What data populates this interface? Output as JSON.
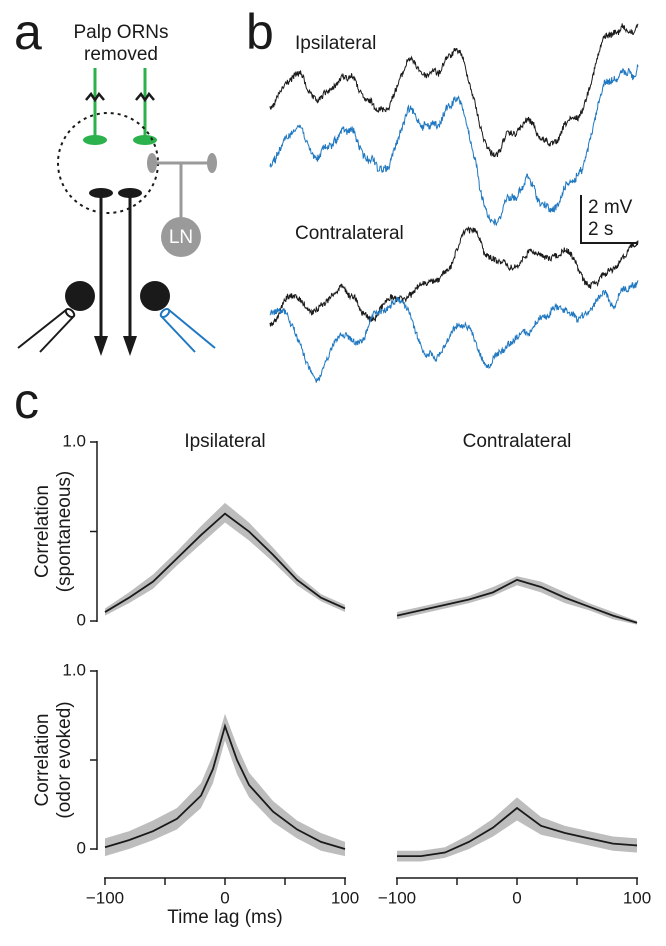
{
  "panels": {
    "a": {
      "letter": "a",
      "label": [
        "Palp ORNs",
        "removed"
      ],
      "ln": "LN"
    },
    "b": {
      "letter": "b",
      "ipsi": "Ipsilateral",
      "contra": "Contralateral",
      "scale_v": "2 mV",
      "scale_t": "2 s"
    },
    "c": {
      "letter": "c",
      "xlabel": "Time lag (ms)"
    }
  },
  "chart_data": [
    {
      "type": "line",
      "title": "Ipsilateral",
      "ylabel": [
        "Correlation",
        "(spontaneous)"
      ],
      "x": [
        -100,
        -80,
        -60,
        -40,
        -20,
        0,
        20,
        40,
        60,
        80,
        100
      ],
      "xlim": [
        -100,
        100
      ],
      "ylim": [
        0,
        1
      ],
      "yticks": [
        0,
        {
          "value": 0.5,
          "label": null
        },
        {
          "value": 1,
          "label": "1.0"
        }
      ],
      "series": [
        {
          "color": "#1a1a1a",
          "band_color": "#bdbdbd",
          "values": [
            0.05,
            0.13,
            0.22,
            0.35,
            0.48,
            0.6,
            0.5,
            0.37,
            0.23,
            0.13,
            0.07
          ],
          "lower": [
            0.03,
            0.1,
            0.18,
            0.31,
            0.43,
            0.55,
            0.45,
            0.33,
            0.2,
            0.11,
            0.05
          ],
          "upper": [
            0.07,
            0.16,
            0.26,
            0.39,
            0.53,
            0.66,
            0.55,
            0.41,
            0.26,
            0.15,
            0.09
          ]
        }
      ]
    },
    {
      "type": "line",
      "title": "Contralateral",
      "x": [
        -100,
        -80,
        -60,
        -40,
        -20,
        0,
        20,
        40,
        60,
        80,
        100
      ],
      "xlim": [
        -100,
        100
      ],
      "ylim": [
        0,
        1
      ],
      "series": [
        {
          "color": "#1a1a1a",
          "band_color": "#bdbdbd",
          "values": [
            0.03,
            0.06,
            0.09,
            0.12,
            0.16,
            0.23,
            0.19,
            0.13,
            0.08,
            0.03,
            -0.01
          ],
          "lower": [
            0.01,
            0.04,
            0.07,
            0.1,
            0.14,
            0.2,
            0.16,
            0.1,
            0.06,
            0.01,
            -0.02
          ],
          "upper": [
            0.05,
            0.08,
            0.11,
            0.14,
            0.19,
            0.25,
            0.22,
            0.16,
            0.1,
            0.05,
            0.0
          ]
        }
      ]
    },
    {
      "type": "line",
      "ylabel": [
        "Correlation",
        "(odor evoked)"
      ],
      "x": [
        -100,
        -80,
        -60,
        -40,
        -20,
        -10,
        0,
        10,
        20,
        40,
        60,
        80,
        100
      ],
      "xlim": [
        -100,
        100
      ],
      "ylim": [
        0,
        1
      ],
      "xticks": [
        {
          "value": -100,
          "label": "−100"
        },
        {
          "value": -50,
          "label": null
        },
        0,
        {
          "value": 50,
          "label": null
        },
        100
      ],
      "yticks": [
        0,
        {
          "value": 0.5,
          "label": null
        },
        {
          "value": 1,
          "label": "1.0"
        }
      ],
      "series": [
        {
          "color": "#1a1a1a",
          "band_color": "#bdbdbd",
          "values": [
            0.01,
            0.05,
            0.1,
            0.17,
            0.3,
            0.45,
            0.69,
            0.5,
            0.36,
            0.21,
            0.11,
            0.04,
            0.0
          ],
          "lower": [
            -0.04,
            0.0,
            0.05,
            0.11,
            0.23,
            0.37,
            0.61,
            0.42,
            0.29,
            0.15,
            0.06,
            -0.01,
            -0.04
          ],
          "upper": [
            0.06,
            0.1,
            0.16,
            0.23,
            0.37,
            0.53,
            0.76,
            0.58,
            0.43,
            0.27,
            0.16,
            0.09,
            0.04
          ]
        }
      ]
    },
    {
      "type": "line",
      "x": [
        -100,
        -80,
        -60,
        -40,
        -20,
        0,
        20,
        40,
        60,
        80,
        100
      ],
      "xlim": [
        -100,
        100
      ],
      "ylim": [
        0,
        1
      ],
      "xticks": [
        {
          "value": -100,
          "label": "−100"
        },
        {
          "value": -50,
          "label": null
        },
        0,
        {
          "value": 50,
          "label": null
        },
        100
      ],
      "series": [
        {
          "color": "#1a1a1a",
          "band_color": "#bdbdbd",
          "values": [
            -0.04,
            -0.04,
            -0.02,
            0.04,
            0.12,
            0.23,
            0.13,
            0.09,
            0.06,
            0.03,
            0.02
          ],
          "lower": [
            -0.07,
            -0.07,
            -0.05,
            0.0,
            0.07,
            0.16,
            0.08,
            0.05,
            0.02,
            -0.01,
            -0.02
          ],
          "upper": [
            -0.01,
            -0.01,
            0.01,
            0.08,
            0.17,
            0.29,
            0.18,
            0.13,
            0.1,
            0.07,
            0.06
          ]
        }
      ]
    }
  ]
}
